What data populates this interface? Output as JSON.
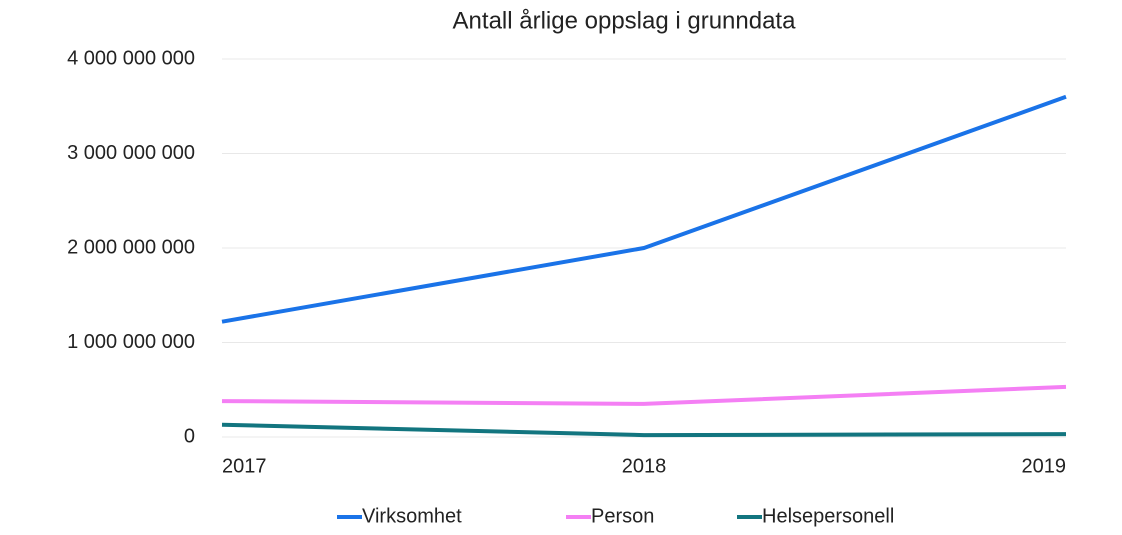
{
  "chart_data": {
    "type": "line",
    "title": "Antall årlige oppslag i grunndata",
    "x": [
      2017,
      2018,
      2019
    ],
    "xlim": [
      2017,
      2019
    ],
    "xticks": [
      2017,
      2018,
      2019
    ],
    "ylim": [
      0,
      4000000000
    ],
    "yticks": [
      0,
      {
        "value": 1000000000,
        "label": "1 000 000 000"
      },
      {
        "value": 2000000000,
        "label": "2 000 000 000"
      },
      {
        "value": 3000000000,
        "label": "3 000 000 000"
      },
      {
        "value": 4000000000,
        "label": "4 000 000 000"
      }
    ],
    "grid": true,
    "legend": "bottom",
    "series": [
      {
        "name": "Virksomhet",
        "color": "#1a73e8",
        "values": [
          1220000000,
          2000000000,
          3600000000
        ]
      },
      {
        "name": "Person",
        "color": "#f47ff4",
        "values": [
          380000000,
          350000000,
          530000000
        ]
      },
      {
        "name": "Helsepersonell",
        "color": "#12757f",
        "values": [
          130000000,
          20000000,
          30000000
        ]
      }
    ]
  }
}
